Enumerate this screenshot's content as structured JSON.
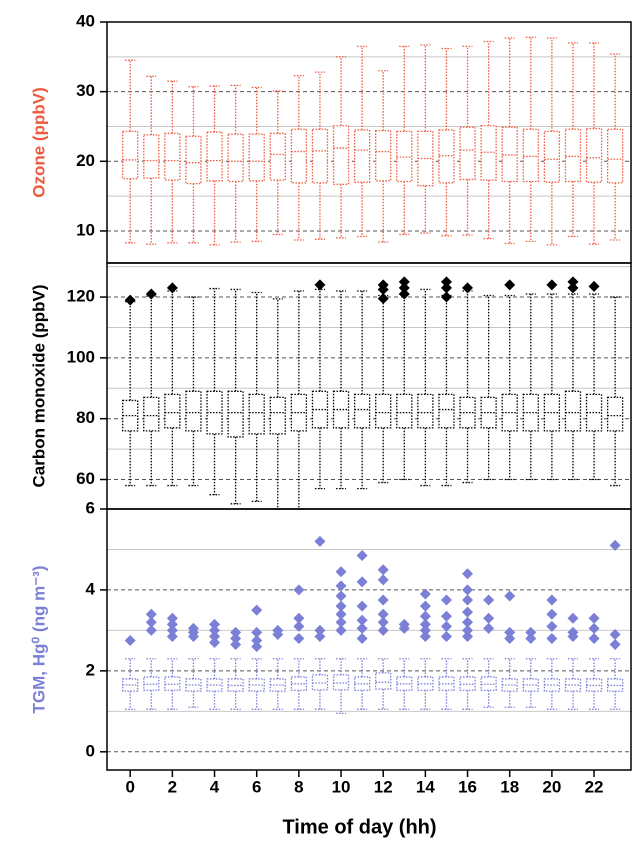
{
  "chart_data": [
    {
      "type": "box",
      "ylabel": "Ozone (ppbV)",
      "color": "#ee5a3f",
      "x": [
        0,
        1,
        2,
        3,
        4,
        5,
        6,
        7,
        8,
        9,
        10,
        11,
        12,
        13,
        14,
        15,
        16,
        17,
        18,
        19,
        20,
        21,
        22,
        23
      ],
      "xlim": [
        -1.1,
        23.8
      ],
      "ylim": [
        5.4,
        40
      ],
      "yticks": [
        10,
        20,
        30,
        40
      ],
      "minor_grid": [
        15,
        25,
        35
      ],
      "whisker_high": [
        34.5,
        32.2,
        31.5,
        30.7,
        30.8,
        30.9,
        30.6,
        30.1,
        32.3,
        32.8,
        35.0,
        36.5,
        33.0,
        36.5,
        36.7,
        36.2,
        36.5,
        37.2,
        37.7,
        37.8,
        37.7,
        37.0,
        37.0,
        35.4
      ],
      "q3": [
        24.3,
        23.8,
        24.0,
        23.6,
        24.2,
        23.9,
        23.9,
        24.0,
        24.6,
        24.6,
        25.1,
        24.5,
        24.4,
        24.3,
        24.3,
        24.5,
        24.9,
        25.1,
        24.9,
        24.6,
        24.3,
        24.6,
        24.7,
        24.6
      ],
      "median": [
        20.2,
        20.1,
        20.1,
        19.8,
        20.1,
        20.0,
        20.0,
        21.0,
        21.4,
        21.5,
        21.9,
        21.6,
        21.4,
        20.6,
        20.4,
        20.8,
        21.6,
        21.3,
        20.9,
        20.7,
        20.3,
        20.7,
        20.5,
        20.3
      ],
      "q1": [
        17.5,
        17.6,
        17.3,
        16.8,
        17.2,
        17.1,
        17.2,
        17.3,
        16.9,
        16.9,
        16.7,
        17.0,
        17.2,
        17.1,
        16.5,
        16.9,
        17.4,
        17.3,
        17.1,
        17.1,
        17.0,
        17.1,
        17.0,
        16.9
      ],
      "whisker_low": [
        8.3,
        8.1,
        8.3,
        8.3,
        8.0,
        8.4,
        8.5,
        9.5,
        8.7,
        8.8,
        9.0,
        9.2,
        8.4,
        9.5,
        9.7,
        9.3,
        9.4,
        8.9,
        8.2,
        8.5,
        8.0,
        9.2,
        8.1,
        8.7
      ],
      "outliers": [
        [],
        [],
        [],
        [],
        [],
        [],
        [],
        [],
        [],
        [],
        [],
        [],
        [],
        [],
        [],
        [],
        [],
        [],
        [],
        [],
        [],
        [],
        [],
        []
      ]
    },
    {
      "type": "box",
      "ylabel": "Carbon monoxide (ppbV)",
      "color": "#000000",
      "x": [
        0,
        1,
        2,
        3,
        4,
        5,
        6,
        7,
        8,
        9,
        10,
        11,
        12,
        13,
        14,
        15,
        16,
        17,
        18,
        19,
        20,
        21,
        22,
        23
      ],
      "xlim": [
        -1.1,
        23.8
      ],
      "ylim": [
        50.3,
        131.2
      ],
      "yticks": [
        60,
        80,
        100,
        120
      ],
      "minor_grid": [
        70,
        90,
        110,
        130
      ],
      "whisker_high": [
        118.5,
        120.3,
        122,
        120,
        122.8,
        122.5,
        121.5,
        119.4,
        122,
        122.5,
        122,
        122,
        120.5,
        121,
        122.5,
        120.5,
        122,
        120.5,
        120.5,
        121,
        121,
        121,
        121,
        120
      ],
      "q3": [
        86,
        87,
        88,
        89,
        89,
        89,
        88,
        87,
        88,
        89,
        89,
        88,
        88,
        88,
        88,
        88,
        87,
        87,
        88,
        88,
        88,
        89,
        88,
        87
      ],
      "median": [
        81,
        81,
        82,
        82,
        82,
        82,
        82,
        82,
        82,
        83,
        83,
        83,
        82,
        82,
        82,
        83,
        82,
        82,
        82,
        82,
        82,
        82,
        82,
        81
      ],
      "q1": [
        76,
        76,
        77,
        76,
        75,
        74,
        75,
        75,
        76,
        77,
        77,
        77,
        77,
        77,
        77,
        77,
        77,
        77,
        76,
        76,
        76,
        76,
        76,
        76
      ],
      "whisker_low": [
        58,
        58,
        58,
        58,
        55,
        52,
        52.8,
        50.3,
        50.3,
        57,
        57,
        57,
        59,
        60,
        58,
        58,
        59,
        60,
        60,
        60,
        60,
        60,
        60,
        58
      ],
      "outliers": [
        [
          119
        ],
        [
          121
        ],
        [
          123
        ],
        [],
        [],
        [],
        [],
        [],
        [],
        [
          124
        ],
        [],
        [],
        [
          124,
          122.5,
          119.5
        ],
        [
          125,
          123,
          121
        ],
        [],
        [
          125,
          123,
          120
        ],
        [
          123
        ],
        [],
        [
          124
        ],
        [],
        [
          124
        ],
        [
          125,
          123
        ],
        [
          123.5
        ],
        []
      ]
    },
    {
      "type": "box",
      "ylabel": "TGM, Hg⁰ (ng m⁻³)",
      "color": "#7b7fd6",
      "xlabel": "Time of day (hh)",
      "x": [
        0,
        1,
        2,
        3,
        4,
        5,
        6,
        7,
        8,
        9,
        10,
        11,
        12,
        13,
        14,
        15,
        16,
        17,
        18,
        19,
        20,
        21,
        22,
        23
      ],
      "xlim": [
        -1.1,
        23.8
      ],
      "xticks": [
        0,
        2,
        4,
        6,
        8,
        10,
        12,
        14,
        16,
        18,
        20,
        22
      ],
      "ylim": [
        -0.45,
        6
      ],
      "yticks": [
        0,
        2,
        4,
        6
      ],
      "minor_grid": [
        1,
        3,
        5
      ],
      "whisker_high": [
        2.3,
        2.3,
        2.3,
        2.3,
        2.3,
        2.3,
        2.3,
        2.3,
        2.3,
        2.3,
        2.3,
        2.3,
        2.3,
        2.3,
        2.3,
        2.3,
        2.3,
        2.3,
        2.3,
        2.3,
        2.3,
        2.3,
        2.3,
        2.3
      ],
      "q3": [
        1.8,
        1.85,
        1.85,
        1.8,
        1.8,
        1.8,
        1.8,
        1.8,
        1.85,
        1.9,
        1.9,
        1.85,
        1.95,
        1.85,
        1.85,
        1.85,
        1.85,
        1.85,
        1.8,
        1.8,
        1.8,
        1.8,
        1.8,
        1.8
      ],
      "median": [
        1.65,
        1.67,
        1.67,
        1.65,
        1.65,
        1.64,
        1.65,
        1.65,
        1.68,
        1.7,
        1.7,
        1.68,
        1.72,
        1.68,
        1.68,
        1.68,
        1.67,
        1.67,
        1.65,
        1.65,
        1.65,
        1.65,
        1.64,
        1.64
      ],
      "q1": [
        1.5,
        1.52,
        1.52,
        1.5,
        1.5,
        1.5,
        1.5,
        1.5,
        1.52,
        1.53,
        1.53,
        1.52,
        1.55,
        1.52,
        1.52,
        1.52,
        1.52,
        1.52,
        1.5,
        1.5,
        1.5,
        1.5,
        1.5,
        1.5
      ],
      "whisker_low": [
        1.05,
        1.05,
        1.05,
        1.1,
        1.05,
        1.05,
        1.05,
        1.05,
        1.05,
        1.05,
        0.95,
        1.05,
        1.05,
        1.05,
        1.05,
        1.05,
        1.05,
        1.1,
        1.1,
        1.1,
        1.05,
        1.05,
        1.05,
        1.05
      ],
      "outliers": [
        [
          2.75
        ],
        [
          3.4,
          3.2,
          3.0
        ],
        [
          3.3,
          3.15,
          3.0,
          2.85
        ],
        [
          3.05,
          2.95,
          2.85
        ],
        [
          3.15,
          3.0,
          2.85,
          2.7
        ],
        [
          2.95,
          2.8,
          2.65
        ],
        [
          3.5,
          2.95,
          2.75,
          2.6
        ],
        [
          3.0,
          2.9
        ],
        [
          4.0,
          3.3,
          3.1,
          2.8
        ],
        [
          5.2,
          3.0,
          2.85
        ],
        [
          4.45,
          4.1,
          3.85,
          3.6,
          3.4,
          3.2,
          3.0
        ],
        [
          4.85,
          4.2,
          3.6,
          3.25,
          3.05,
          2.8
        ],
        [
          4.5,
          4.25,
          3.75,
          3.4,
          3.2,
          3.0
        ],
        [
          3.15,
          3.05
        ],
        [
          3.9,
          3.6,
          3.35,
          3.15,
          3.0,
          2.85
        ],
        [
          3.75,
          3.35,
          3.1,
          2.85
        ],
        [
          4.4,
          4.0,
          3.75,
          3.45,
          3.2,
          3.0,
          2.85
        ],
        [
          3.75,
          3.3,
          3.05
        ],
        [
          3.85,
          2.95,
          2.8
        ],
        [
          2.95,
          2.8
        ],
        [
          3.75,
          3.4,
          3.1,
          2.8
        ],
        [
          3.3,
          2.95,
          2.85
        ],
        [
          3.3,
          3.05,
          2.8
        ],
        [
          5.1,
          2.9,
          2.65
        ]
      ]
    }
  ]
}
